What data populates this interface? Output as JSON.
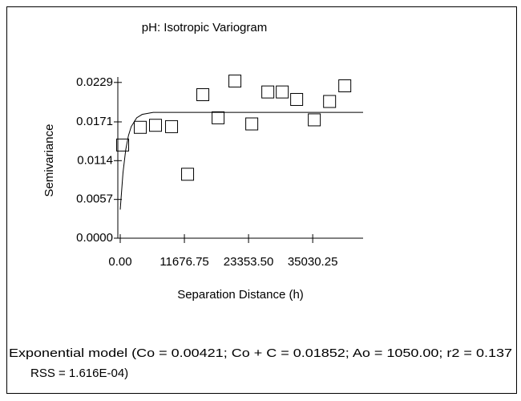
{
  "chart_data": {
    "type": "scatter",
    "title": "pH: Isotropic Variogram",
    "x_label": "Separation Distance (h)",
    "y_label": "Semivariance",
    "x": [
      440,
      3650,
      6420,
      9340,
      12260,
      15030,
      17810,
      20870,
      23940,
      26860,
      29490,
      32110,
      35320,
      38100,
      40870
    ],
    "values": [
      0.0137,
      0.0163,
      0.0166,
      0.0164,
      0.0094,
      0.0211,
      0.0177,
      0.0231,
      0.0168,
      0.0215,
      0.0215,
      0.0204,
      0.0174,
      0.0201,
      0.0224
    ],
    "model_curve": {
      "x": [
        0,
        500,
        1000,
        1500,
        2000,
        3000,
        4000,
        6000,
        44200
      ],
      "values": [
        0.0042,
        0.0096,
        0.013,
        0.0151,
        0.0164,
        0.0177,
        0.0182,
        0.0185,
        0.0185
      ]
    },
    "xlim": [
      0,
      44200
    ],
    "ylim": [
      0,
      0.0237
    ],
    "xticks": [
      {
        "value": 0,
        "label": "0.00"
      },
      {
        "value": 11676.75,
        "label": "11676.75"
      },
      {
        "value": 23353.5,
        "label": "23353.50"
      },
      {
        "value": 35030.25,
        "label": "35030.25"
      }
    ],
    "yticks": [
      {
        "value": 0,
        "label": "0.0000"
      },
      {
        "value": 0.0057,
        "label": "0.0057"
      },
      {
        "value": 0.0114,
        "label": "0.0114"
      },
      {
        "value": 0.0171,
        "label": "0.0171"
      },
      {
        "value": 0.0229,
        "label": "0.0229"
      }
    ],
    "caption_lines": [
      "Exponential model (Co = 0.00421; Co + C = 0.01852; Ao = 1050.00; r2 = 0.137",
      "RSS = 1.616E-04)"
    ]
  }
}
